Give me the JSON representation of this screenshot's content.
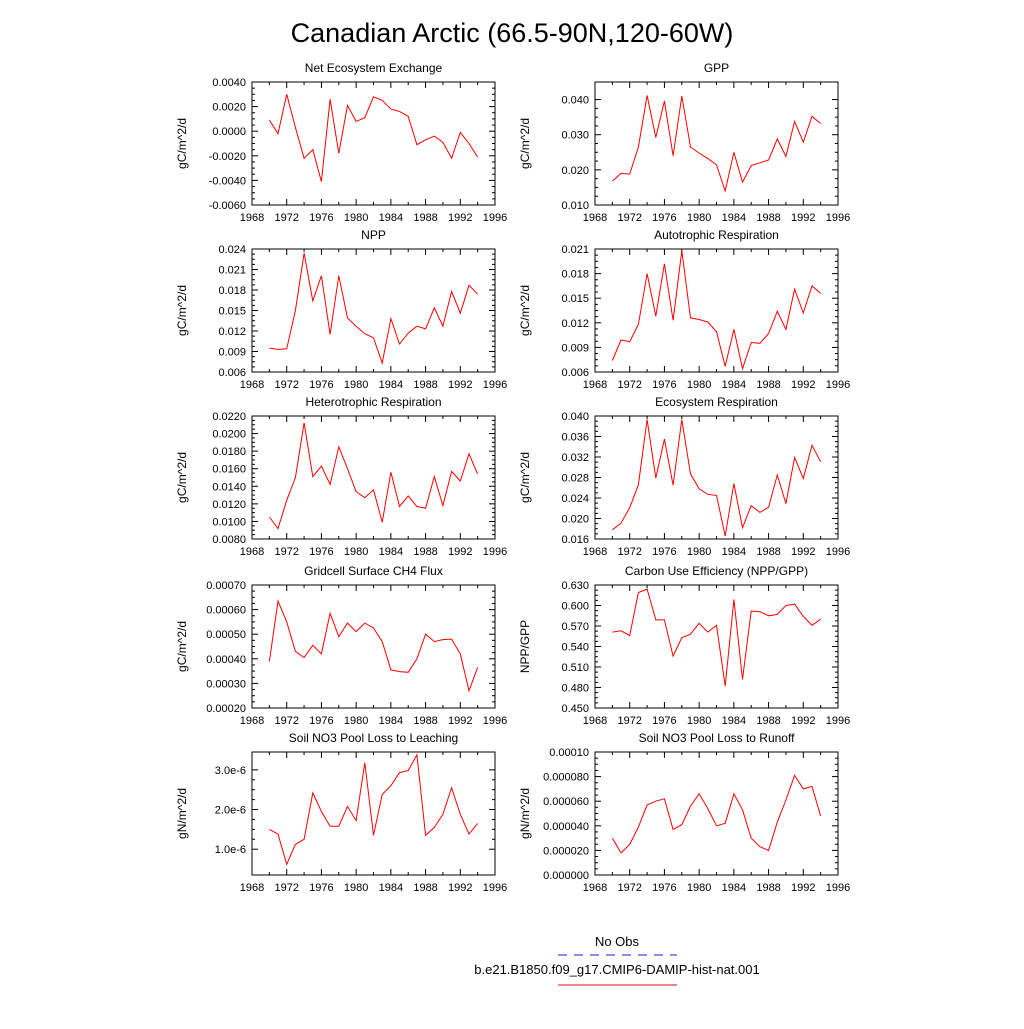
{
  "figure": {
    "title": "Canadian Arctic (66.5-90N,120-60W)"
  },
  "legend": {
    "items": [
      {
        "label": "No Obs",
        "color": "#4a4adf",
        "style": "dashed"
      },
      {
        "label": "b.e21.B1850.f09_g17.CMIP6-DAMIP-hist-nat.001",
        "color": "#ff0000",
        "style": "solid"
      }
    ]
  },
  "chart_data": [
    {
      "type": "line",
      "title": "Net Ecosystem Exchange",
      "ylabel": "gC/m^2/d",
      "xlim": [
        1968,
        1996
      ],
      "ylim": [
        -0.006,
        0.004
      ],
      "xticks": [
        "1968",
        "1972",
        "1976",
        "1980",
        "1984",
        "1988",
        "1992",
        "1996"
      ],
      "yticks": [
        "-0.0060",
        "-0.0040",
        "-0.0020",
        "0.0000",
        "0.0020",
        "0.0040"
      ],
      "color": "#ff0000",
      "x": [
        1970,
        1971,
        1972,
        1973,
        1974,
        1975,
        1976,
        1977,
        1978,
        1979,
        1980,
        1981,
        1982,
        1983,
        1984,
        1985,
        1986,
        1987,
        1988,
        1989,
        1990,
        1991,
        1992,
        1993,
        1994
      ],
      "y": [
        0.0009,
        -0.0002,
        0.003,
        0.0003,
        -0.0022,
        -0.0015,
        -0.0041,
        0.0026,
        -0.0018,
        0.0021,
        0.0008,
        0.0011,
        0.0028,
        0.0025,
        0.0018,
        0.0016,
        0.0012,
        -0.0011,
        -0.0007,
        -0.0004,
        -0.0009,
        -0.0022,
        -0.0001,
        -0.001,
        -0.0021
      ]
    },
    {
      "type": "line",
      "title": "GPP",
      "ylabel": "gC/m^2/d",
      "xlim": [
        1968,
        1996
      ],
      "ylim": [
        0.01,
        0.045
      ],
      "xticks": [
        "1968",
        "1972",
        "1976",
        "1980",
        "1984",
        "1988",
        "1992",
        "1996"
      ],
      "yticks": [
        "0.010",
        "0.020",
        "0.030",
        "0.040"
      ],
      "color": "#ff0000",
      "x": [
        1970,
        1971,
        1972,
        1973,
        1974,
        1975,
        1976,
        1977,
        1978,
        1979,
        1980,
        1981,
        1982,
        1983,
        1984,
        1985,
        1986,
        1987,
        1988,
        1989,
        1990,
        1991,
        1992,
        1993,
        1994
      ],
      "y": [
        0.0168,
        0.019,
        0.0188,
        0.0265,
        0.0412,
        0.0292,
        0.0396,
        0.024,
        0.041,
        0.0265,
        0.0248,
        0.0232,
        0.0214,
        0.014,
        0.025,
        0.0165,
        0.0212,
        0.022,
        0.0228,
        0.0288,
        0.0238,
        0.0338,
        0.0279,
        0.0352,
        0.0332
      ]
    },
    {
      "type": "line",
      "title": "NPP",
      "ylabel": "gC/m^2/d",
      "xlim": [
        1968,
        1996
      ],
      "ylim": [
        0.006,
        0.024
      ],
      "xticks": [
        "1968",
        "1972",
        "1976",
        "1980",
        "1984",
        "1988",
        "1992",
        "1996"
      ],
      "yticks": [
        "0.006",
        "0.009",
        "0.012",
        "0.015",
        "0.018",
        "0.021",
        "0.024"
      ],
      "color": "#ff0000",
      "x": [
        1970,
        1971,
        1972,
        1973,
        1974,
        1975,
        1976,
        1977,
        1978,
        1979,
        1980,
        1981,
        1982,
        1983,
        1984,
        1985,
        1986,
        1987,
        1988,
        1989,
        1990,
        1991,
        1992,
        1993,
        1994
      ],
      "y": [
        0.0095,
        0.0093,
        0.0094,
        0.015,
        0.0234,
        0.0164,
        0.0201,
        0.0115,
        0.0201,
        0.0139,
        0.0127,
        0.0116,
        0.011,
        0.0073,
        0.0138,
        0.0101,
        0.0117,
        0.0127,
        0.0123,
        0.0154,
        0.0127,
        0.0178,
        0.0146,
        0.0187,
        0.0174
      ]
    },
    {
      "type": "line",
      "title": "Autotrophic Respiration",
      "ylabel": "gC/m^2/d",
      "xlim": [
        1968,
        1996
      ],
      "ylim": [
        0.006,
        0.021
      ],
      "xticks": [
        "1968",
        "1972",
        "1976",
        "1980",
        "1984",
        "1988",
        "1992",
        "1996"
      ],
      "yticks": [
        "0.006",
        "0.009",
        "0.012",
        "0.015",
        "0.018",
        "0.021"
      ],
      "color": "#ff0000",
      "x": [
        1970,
        1971,
        1972,
        1973,
        1974,
        1975,
        1976,
        1977,
        1978,
        1979,
        1980,
        1981,
        1982,
        1983,
        1984,
        1985,
        1986,
        1987,
        1988,
        1989,
        1990,
        1991,
        1992,
        1993,
        1994
      ],
      "y": [
        0.0074,
        0.0099,
        0.0097,
        0.0118,
        0.018,
        0.0128,
        0.0192,
        0.0123,
        0.0208,
        0.0126,
        0.0124,
        0.0121,
        0.0109,
        0.0067,
        0.0112,
        0.0064,
        0.0096,
        0.0095,
        0.0107,
        0.0134,
        0.0112,
        0.0161,
        0.0132,
        0.0165,
        0.0156
      ]
    },
    {
      "type": "line",
      "title": "Heterotrophic Respiration",
      "ylabel": "gC/m^2/d",
      "xlim": [
        1968,
        1996
      ],
      "ylim": [
        0.008,
        0.022
      ],
      "xticks": [
        "1968",
        "1972",
        "1976",
        "1980",
        "1984",
        "1988",
        "1992",
        "1996"
      ],
      "yticks": [
        "0.0080",
        "0.0100",
        "0.0120",
        "0.0140",
        "0.0160",
        "0.0180",
        "0.0200",
        "0.0220"
      ],
      "color": "#ff0000",
      "x": [
        1970,
        1971,
        1972,
        1973,
        1974,
        1975,
        1976,
        1977,
        1978,
        1979,
        1980,
        1981,
        1982,
        1983,
        1984,
        1985,
        1986,
        1987,
        1988,
        1989,
        1990,
        1991,
        1992,
        1993,
        1994
      ],
      "y": [
        0.0105,
        0.0092,
        0.0124,
        0.015,
        0.0212,
        0.0151,
        0.0163,
        0.0142,
        0.0185,
        0.016,
        0.0134,
        0.0127,
        0.0136,
        0.0099,
        0.0156,
        0.0117,
        0.0129,
        0.0117,
        0.0115,
        0.0151,
        0.0118,
        0.0157,
        0.0146,
        0.0177,
        0.0154
      ]
    },
    {
      "type": "line",
      "title": "Ecosystem Respiration",
      "ylabel": "gC/m^2/d",
      "xlim": [
        1968,
        1996
      ],
      "ylim": [
        0.016,
        0.04
      ],
      "xticks": [
        "1968",
        "1972",
        "1976",
        "1980",
        "1984",
        "1988",
        "1992",
        "1996"
      ],
      "yticks": [
        "0.016",
        "0.020",
        "0.024",
        "0.028",
        "0.032",
        "0.036",
        "0.040"
      ],
      "color": "#ff0000",
      "x": [
        1970,
        1971,
        1972,
        1973,
        1974,
        1975,
        1976,
        1977,
        1978,
        1979,
        1980,
        1981,
        1982,
        1983,
        1984,
        1985,
        1986,
        1987,
        1988,
        1989,
        1990,
        1991,
        1992,
        1993,
        1994
      ],
      "y": [
        0.0178,
        0.0191,
        0.0221,
        0.0266,
        0.0393,
        0.0279,
        0.0355,
        0.0265,
        0.0393,
        0.0287,
        0.0258,
        0.0247,
        0.0245,
        0.0166,
        0.0268,
        0.0182,
        0.0225,
        0.0212,
        0.0222,
        0.0285,
        0.0229,
        0.0319,
        0.0278,
        0.0343,
        0.0311
      ]
    },
    {
      "type": "line",
      "title": "Gridcell Surface CH4 Flux",
      "ylabel": "gC/m^2/d",
      "xlim": [
        1968,
        1996
      ],
      "ylim": [
        0.0002,
        0.0007
      ],
      "xticks": [
        "1968",
        "1972",
        "1976",
        "1980",
        "1984",
        "1988",
        "1992",
        "1996"
      ],
      "yticks": [
        "0.00020",
        "0.00030",
        "0.00040",
        "0.00050",
        "0.00060",
        "0.00070"
      ],
      "color": "#ff0000",
      "x": [
        1970,
        1971,
        1972,
        1973,
        1974,
        1975,
        1976,
        1977,
        1978,
        1979,
        1980,
        1981,
        1982,
        1983,
        1984,
        1985,
        1986,
        1987,
        1988,
        1989,
        1990,
        1991,
        1992,
        1993,
        1994
      ],
      "y": [
        0.00039,
        0.000635,
        0.00055,
        0.00043,
        0.000405,
        0.000455,
        0.00042,
        0.000585,
        0.00049,
        0.000545,
        0.00051,
        0.000545,
        0.000525,
        0.00047,
        0.000355,
        0.000348,
        0.000345,
        0.0004,
        0.0005,
        0.00047,
        0.000478,
        0.00048,
        0.00042,
        0.00027,
        0.000365
      ]
    },
    {
      "type": "line",
      "title": "Carbon Use Efficiency (NPP/GPP)",
      "ylabel": "NPP/GPP",
      "xlim": [
        1968,
        1996
      ],
      "ylim": [
        0.45,
        0.63
      ],
      "xticks": [
        "1968",
        "1972",
        "1976",
        "1980",
        "1984",
        "1988",
        "1992",
        "1996"
      ],
      "yticks": [
        "0.450",
        "0.480",
        "0.510",
        "0.540",
        "0.570",
        "0.600",
        "0.630"
      ],
      "color": "#ff0000",
      "x": [
        1970,
        1971,
        1972,
        1973,
        1974,
        1975,
        1976,
        1977,
        1978,
        1979,
        1980,
        1981,
        1982,
        1983,
        1984,
        1985,
        1986,
        1987,
        1988,
        1989,
        1990,
        1991,
        1992,
        1993,
        1994
      ],
      "y": [
        0.561,
        0.563,
        0.556,
        0.619,
        0.624,
        0.579,
        0.579,
        0.526,
        0.553,
        0.558,
        0.574,
        0.561,
        0.571,
        0.482,
        0.609,
        0.492,
        0.592,
        0.591,
        0.585,
        0.587,
        0.6,
        0.602,
        0.584,
        0.571,
        0.58
      ]
    },
    {
      "type": "line",
      "title": "Soil NO3 Pool Loss to Leaching",
      "ylabel": "gN/m^2/d",
      "xlim": [
        1968,
        1996
      ],
      "ylim": [
        3.5e-07,
        3.45e-06
      ],
      "xticks": [
        "1968",
        "1972",
        "1976",
        "1980",
        "1984",
        "1988",
        "1992",
        "1996"
      ],
      "yticks": [
        "1.0e-6",
        "2.0e-6",
        "3.0e-6"
      ],
      "ytick_values": [
        1e-06,
        2e-06,
        3e-06
      ],
      "color": "#ff0000",
      "x": [
        1970,
        1971,
        1972,
        1973,
        1974,
        1975,
        1976,
        1977,
        1978,
        1979,
        1980,
        1981,
        1982,
        1983,
        1984,
        1985,
        1986,
        1987,
        1988,
        1989,
        1990,
        1991,
        1992,
        1993,
        1994
      ],
      "y": [
        1.5e-06,
        1.38e-06,
        6.2e-07,
        1.12e-06,
        1.25e-06,
        2.42e-06,
        1.95e-06,
        1.58e-06,
        1.58e-06,
        2.08e-06,
        1.72e-06,
        3.18e-06,
        1.35e-06,
        2.38e-06,
        2.6e-06,
        2.93e-06,
        2.98e-06,
        3.38e-06,
        1.35e-06,
        1.55e-06,
        1.88e-06,
        2.55e-06,
        1.88e-06,
        1.38e-06,
        1.65e-06
      ]
    },
    {
      "type": "line",
      "title": "Soil NO3 Pool Loss to Runoff",
      "ylabel": "gN/m^2/d",
      "xlim": [
        1968,
        1996
      ],
      "ylim": [
        0,
        0.0001
      ],
      "xticks": [
        "1968",
        "1972",
        "1976",
        "1980",
        "1984",
        "1988",
        "1992",
        "1996"
      ],
      "yticks": [
        "0.000000",
        "0.000020",
        "0.000040",
        "0.000060",
        "0.000080",
        "0.00010"
      ],
      "color": "#ff0000",
      "x": [
        1970,
        1971,
        1972,
        1973,
        1974,
        1975,
        1976,
        1977,
        1978,
        1979,
        1980,
        1981,
        1982,
        1983,
        1984,
        1985,
        1986,
        1987,
        1988,
        1989,
        1990,
        1991,
        1992,
        1993,
        1994
      ],
      "y": [
        3e-05,
        1.8e-05,
        2.5e-05,
        3.9e-05,
        5.7e-05,
        6e-05,
        6.2e-05,
        3.7e-05,
        4.1e-05,
        5.6e-05,
        6.6e-05,
        5.4e-05,
        4e-05,
        4.2e-05,
        6.6e-05,
        5.3e-05,
        3e-05,
        2.3e-05,
        2e-05,
        4.3e-05,
        6.1e-05,
        8.1e-05,
        7e-05,
        7.2e-05,
        4.8e-05
      ]
    }
  ]
}
